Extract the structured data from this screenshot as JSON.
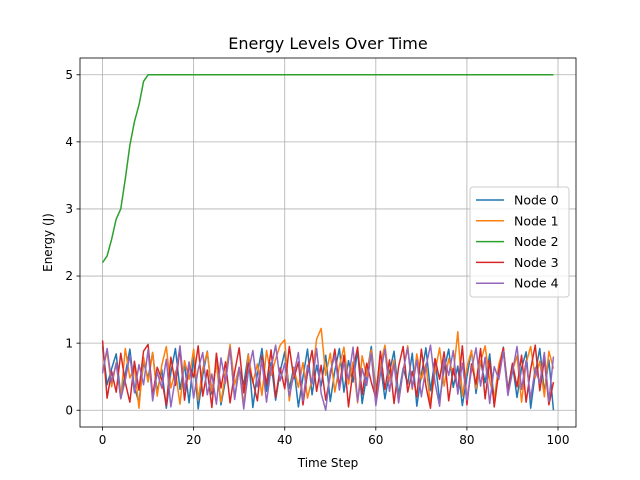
{
  "chart_data": {
    "type": "line",
    "title": "Energy Levels Over Time",
    "xlabel": "Time Step",
    "ylabel": "Energy (J)",
    "xlim": [
      -4.95,
      103.95
    ],
    "ylim": [
      -0.25,
      5.25
    ],
    "xticks": [
      0,
      20,
      40,
      60,
      80,
      100
    ],
    "yticks": [
      0,
      1,
      2,
      3,
      4,
      5
    ],
    "grid": true,
    "legend_position": "center-right",
    "series": [
      {
        "name": "Node 0",
        "color": "#1f77b4",
        "x": [
          0,
          1,
          2,
          3,
          4,
          5,
          6,
          7,
          8,
          9,
          10,
          11,
          12,
          13,
          14,
          15,
          16,
          17,
          18,
          19,
          20,
          21,
          22,
          23,
          24,
          25,
          26,
          27,
          28,
          29,
          30,
          31,
          32,
          33,
          34,
          35,
          36,
          37,
          38,
          39,
          40,
          41,
          42,
          43,
          44,
          45,
          46,
          47,
          48,
          49,
          50,
          51,
          52,
          53,
          54,
          55,
          56,
          57,
          58,
          59,
          60,
          61,
          62,
          63,
          64,
          65,
          66,
          67,
          68,
          69,
          70,
          71,
          72,
          73,
          74,
          75,
          76,
          77,
          78,
          79,
          80,
          81,
          82,
          83,
          84,
          85,
          86,
          87,
          88,
          89,
          90,
          91,
          92,
          93,
          94,
          95,
          96,
          97,
          98,
          99
        ],
        "y": [
          0.95,
          0.38,
          0.62,
          0.84,
          0.22,
          0.54,
          0.91,
          0.33,
          0.12,
          0.71,
          0.48,
          0.86,
          0.27,
          0.61,
          0.03,
          0.56,
          0.92,
          0.31,
          0.68,
          0.11,
          0.8,
          0.02,
          0.52,
          0.88,
          0.24,
          0.72,
          0.08,
          0.45,
          0.93,
          0.19,
          0.62,
          0.38,
          0.84,
          0.04,
          0.55,
          0.92,
          0.28,
          0.71,
          0.15,
          0.58,
          0.87,
          0.32,
          0.64,
          0.05,
          0.49,
          0.91,
          0.23,
          0.67,
          0.36,
          0.82,
          0.13,
          0.59,
          0.92,
          0.27,
          0.74,
          0.42,
          0.89,
          0.1,
          0.52,
          0.95,
          0.3,
          0.69,
          0.17,
          0.57,
          0.88,
          0.22,
          0.63,
          0.39,
          0.85,
          0.06,
          0.53,
          0.93,
          0.29,
          0.76,
          0.14,
          0.61,
          0.91,
          0.34,
          0.66,
          0.07,
          0.5,
          0.89,
          0.25,
          0.73,
          0.41,
          0.84,
          0.12,
          0.58,
          0.94,
          0.31,
          0.69,
          0.19,
          0.63,
          0.87,
          0.03,
          0.55,
          0.92,
          0.27,
          0.75,
          0.0
        ]
      },
      {
        "name": "Node 1",
        "color": "#ff7f0e",
        "x": [
          0,
          1,
          2,
          3,
          4,
          5,
          6,
          7,
          8,
          9,
          10,
          11,
          12,
          13,
          14,
          15,
          16,
          17,
          18,
          19,
          20,
          21,
          22,
          23,
          24,
          25,
          26,
          27,
          28,
          29,
          30,
          31,
          32,
          33,
          34,
          35,
          36,
          37,
          38,
          39,
          40,
          41,
          42,
          43,
          44,
          45,
          46,
          47,
          48,
          49,
          50,
          51,
          52,
          53,
          54,
          55,
          56,
          57,
          58,
          59,
          60,
          61,
          62,
          63,
          64,
          65,
          66,
          67,
          68,
          69,
          70,
          71,
          72,
          73,
          74,
          75,
          76,
          77,
          78,
          79,
          80,
          81,
          82,
          83,
          84,
          85,
          86,
          87,
          88,
          89,
          90,
          91,
          92,
          93,
          94,
          95,
          96,
          97,
          98,
          99
        ],
        "y": [
          0.6,
          0.88,
          0.35,
          0.71,
          0.18,
          0.92,
          0.48,
          0.65,
          0.03,
          0.79,
          0.42,
          0.86,
          0.21,
          0.67,
          0.95,
          0.33,
          0.58,
          0.09,
          0.74,
          0.46,
          0.91,
          0.15,
          0.62,
          0.87,
          0.29,
          0.7,
          0.12,
          0.55,
          0.98,
          0.38,
          0.64,
          0.07,
          0.83,
          0.41,
          0.69,
          0.22,
          0.89,
          0.52,
          0.76,
          0.97,
          1.05,
          0.14,
          0.63,
          0.34,
          0.71,
          0.18,
          0.47,
          1.06,
          1.22,
          0.52,
          0.85,
          0.27,
          0.66,
          0.94,
          0.39,
          0.72,
          0.11,
          0.81,
          0.5,
          0.9,
          0.24,
          0.68,
          0.97,
          0.43,
          0.75,
          0.13,
          0.59,
          0.96,
          0.31,
          0.84,
          0.46,
          0.69,
          0.08,
          0.57,
          0.93,
          0.36,
          0.77,
          0.53,
          1.17,
          0.21,
          0.64,
          0.89,
          0.32,
          0.72,
          0.96,
          0.44,
          0.16,
          0.68,
          0.93,
          0.26,
          0.59,
          0.81,
          0.12,
          0.7,
          0.95,
          0.48,
          0.73,
          0.2,
          0.88,
          0.62
        ]
      },
      {
        "name": "Node 2",
        "color": "#2ca02c",
        "x": [
          0,
          1,
          2,
          3,
          4,
          5,
          6,
          7,
          8,
          9,
          10,
          11,
          12,
          13,
          14,
          15,
          16,
          17,
          18,
          19,
          20,
          21,
          22,
          23,
          24,
          25,
          26,
          27,
          28,
          29,
          30,
          31,
          32,
          33,
          34,
          35,
          36,
          37,
          38,
          39,
          40,
          41,
          42,
          43,
          44,
          45,
          46,
          47,
          48,
          49,
          50,
          51,
          52,
          53,
          54,
          55,
          56,
          57,
          58,
          59,
          60,
          61,
          62,
          63,
          64,
          65,
          66,
          67,
          68,
          69,
          70,
          71,
          72,
          73,
          74,
          75,
          76,
          77,
          78,
          79,
          80,
          81,
          82,
          83,
          84,
          85,
          86,
          87,
          88,
          89,
          90,
          91,
          92,
          93,
          94,
          95,
          96,
          97,
          98,
          99
        ],
        "y": [
          2.2,
          2.3,
          2.55,
          2.85,
          3.0,
          3.45,
          3.95,
          4.3,
          4.55,
          4.9,
          5.0,
          5,
          5,
          5,
          5,
          5,
          5,
          5,
          5,
          5,
          5,
          5,
          5,
          5,
          5,
          5,
          5,
          5,
          5,
          5,
          5,
          5,
          5,
          5,
          5,
          5,
          5,
          5,
          5,
          5,
          5,
          5,
          5,
          5,
          5,
          5,
          5,
          5,
          5,
          5,
          5,
          5,
          5,
          5,
          5,
          5,
          5,
          5,
          5,
          5,
          5,
          5,
          5,
          5,
          5,
          5,
          5,
          5,
          5,
          5,
          5,
          5,
          5,
          5,
          5,
          5,
          5,
          5,
          5,
          5,
          5,
          5,
          5,
          5,
          5,
          5,
          5,
          5,
          5,
          5,
          5,
          5,
          5,
          5,
          5,
          5,
          5,
          5,
          5,
          5
        ]
      },
      {
        "name": "Node 3",
        "color": "#d62728",
        "x": [
          0,
          1,
          2,
          3,
          4,
          5,
          6,
          7,
          8,
          9,
          10,
          11,
          12,
          13,
          14,
          15,
          16,
          17,
          18,
          19,
          20,
          21,
          22,
          23,
          24,
          25,
          26,
          27,
          28,
          29,
          30,
          31,
          32,
          33,
          34,
          35,
          36,
          37,
          38,
          39,
          40,
          41,
          42,
          43,
          44,
          45,
          46,
          47,
          48,
          49,
          50,
          51,
          52,
          53,
          54,
          55,
          56,
          57,
          58,
          59,
          60,
          61,
          62,
          63,
          64,
          65,
          66,
          67,
          68,
          69,
          70,
          71,
          72,
          73,
          74,
          75,
          76,
          77,
          78,
          79,
          80,
          81,
          82,
          83,
          84,
          85,
          86,
          87,
          88,
          89,
          90,
          91,
          92,
          93,
          94,
          95,
          96,
          97,
          98,
          99
        ],
        "y": [
          1.04,
          0.18,
          0.58,
          0.27,
          0.85,
          0.41,
          0.12,
          0.73,
          0.3,
          0.88,
          0.98,
          0.22,
          0.64,
          0.46,
          0.07,
          0.79,
          0.37,
          0.92,
          0.15,
          0.68,
          0.49,
          0.96,
          0.21,
          0.6,
          0.04,
          0.85,
          0.33,
          0.72,
          0.11,
          0.57,
          0.93,
          0.26,
          0.7,
          0.43,
          0.14,
          0.81,
          0.38,
          0.9,
          0.19,
          0.63,
          0.32,
          0.95,
          0.47,
          0.72,
          0.08,
          0.56,
          0.89,
          0.28,
          0.67,
          0.15,
          0.52,
          0.91,
          0.35,
          0.82,
          0.05,
          0.6,
          0.94,
          0.23,
          0.7,
          0.42,
          0.18,
          0.88,
          0.31,
          0.75,
          0.1,
          0.65,
          0.95,
          0.27,
          0.58,
          0.2,
          0.91,
          0.36,
          0.03,
          0.77,
          0.46,
          0.87,
          0.14,
          0.62,
          0.3,
          0.96,
          0.08,
          0.69,
          0.39,
          0.92,
          0.17,
          0.74,
          0.05,
          0.58,
          0.93,
          0.24,
          0.7,
          0.35,
          0.82,
          0.12,
          0.61,
          0.97,
          0.29,
          0.76,
          0.08,
          0.42
        ]
      },
      {
        "name": "Node 4",
        "color": "#9467bd",
        "x": [
          0,
          1,
          2,
          3,
          4,
          5,
          6,
          7,
          8,
          9,
          10,
          11,
          12,
          13,
          14,
          15,
          16,
          17,
          18,
          19,
          20,
          21,
          22,
          23,
          24,
          25,
          26,
          27,
          28,
          29,
          30,
          31,
          32,
          33,
          34,
          35,
          36,
          37,
          38,
          39,
          40,
          41,
          42,
          43,
          44,
          45,
          46,
          47,
          48,
          49,
          50,
          51,
          52,
          53,
          54,
          55,
          56,
          57,
          58,
          59,
          60,
          61,
          62,
          63,
          64,
          65,
          66,
          67,
          68,
          69,
          70,
          71,
          72,
          73,
          74,
          75,
          76,
          77,
          78,
          79,
          80,
          81,
          82,
          83,
          84,
          85,
          86,
          87,
          88,
          89,
          90,
          91,
          92,
          93,
          94,
          95,
          96,
          97,
          98,
          99
        ],
        "y": [
          0.55,
          0.92,
          0.42,
          0.7,
          0.17,
          0.45,
          0.82,
          0.26,
          0.68,
          0.38,
          0.9,
          0.14,
          0.57,
          0.33,
          0.76,
          0.05,
          0.49,
          0.96,
          0.3,
          0.72,
          0.18,
          0.61,
          0.86,
          0.23,
          0.54,
          0.09,
          0.78,
          0.41,
          0.93,
          0.16,
          0.64,
          0.02,
          0.57,
          0.89,
          0.35,
          0.74,
          0.12,
          0.62,
          0.97,
          0.44,
          0.7,
          0.21,
          0.53,
          0.86,
          0.14,
          0.67,
          0.39,
          0.92,
          0.25,
          0.0,
          0.58,
          0.81,
          0.3,
          0.71,
          0.46,
          0.94,
          0.13,
          0.62,
          0.37,
          0.85,
          0.07,
          0.54,
          0.91,
          0.28,
          0.69,
          0.11,
          0.59,
          0.93,
          0.33,
          0.75,
          0.2,
          0.64,
          0.97,
          0.41,
          0.06,
          0.78,
          0.52,
          0.89,
          0.24,
          0.7,
          0.15,
          0.6,
          0.93,
          0.36,
          0.79,
          0.1,
          0.65,
          0.46,
          0.88,
          0.22,
          0.57,
          0.95,
          0.31,
          0.74,
          0.17,
          0.63,
          0.4,
          0.86,
          0.13,
          0.8
        ]
      }
    ]
  }
}
